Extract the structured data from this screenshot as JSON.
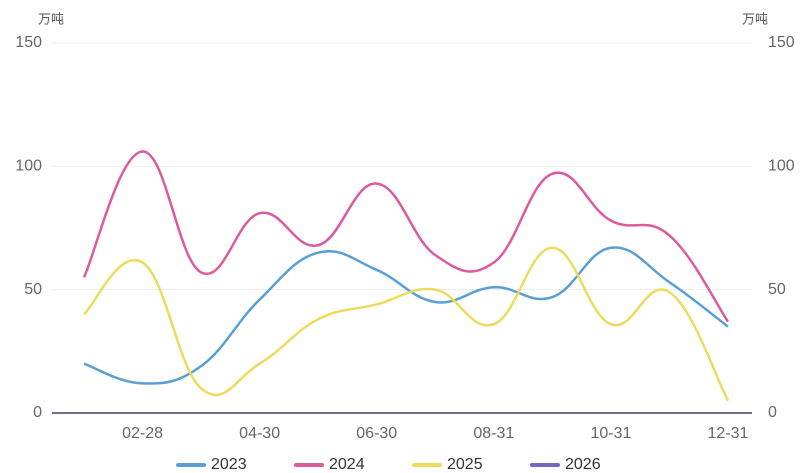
{
  "chart_data": {
    "type": "line",
    "ylabel": "万吨",
    "y2label": "万吨",
    "categories": [
      null,
      "02-28",
      null,
      "04-30",
      null,
      "06-30",
      null,
      "08-31",
      null,
      "10-31",
      null,
      "12-31"
    ],
    "series": [
      {
        "name": "2023",
        "color": "#5a9fd4",
        "values": [
          20,
          12,
          19,
          46,
          65,
          58,
          45,
          51,
          47,
          67,
          53,
          35
        ]
      },
      {
        "name": "2024",
        "color": "#dc5a9e",
        "values": [
          55,
          106,
          57,
          81,
          68,
          93,
          64,
          61,
          97,
          78,
          72,
          37
        ]
      },
      {
        "name": "2025",
        "color": "#eedb5e",
        "values": [
          40,
          61,
          10,
          20,
          38,
          44,
          50,
          36,
          67,
          36,
          49,
          5
        ]
      },
      {
        "name": "2026",
        "color": "#7a64c8",
        "values": [
          null,
          null,
          null,
          null,
          null,
          null,
          null,
          null,
          null,
          null,
          null,
          null
        ]
      }
    ],
    "ylim": [
      0,
      150
    ],
    "yticks": [
      0,
      50,
      100,
      150
    ],
    "y2lim": [
      0,
      150
    ],
    "y2ticks": [
      0,
      50,
      100,
      150
    ],
    "grid": true,
    "legend": "bottom"
  }
}
